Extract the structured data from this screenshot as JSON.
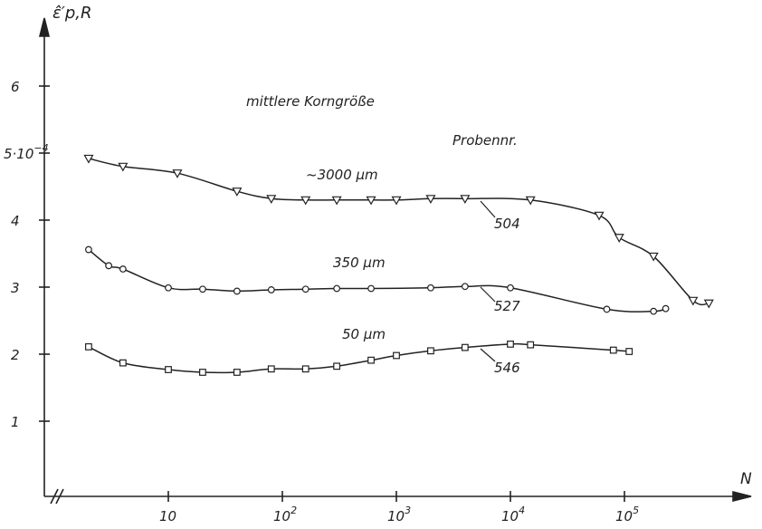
{
  "chart_data": {
    "type": "scatter",
    "x_scale": "log",
    "xlabel": "N",
    "ylabel": "ε̂′p,R",
    "xlim": [
      1,
      1000000
    ],
    "ylim": [
      0,
      7
    ],
    "grid": false,
    "x_ticks": [
      {
        "value": 10,
        "base": "10",
        "exp": ""
      },
      {
        "value": 100,
        "base": "10",
        "exp": "2"
      },
      {
        "value": 1000,
        "base": "10",
        "exp": "3"
      },
      {
        "value": 10000,
        "base": "10",
        "exp": "4"
      },
      {
        "value": 100000,
        "base": "10",
        "exp": "5"
      }
    ],
    "y_ticks": [
      {
        "value": 1,
        "label": "1",
        "sup": ""
      },
      {
        "value": 2,
        "label": "2",
        "sup": ""
      },
      {
        "value": 3,
        "label": "3",
        "sup": ""
      },
      {
        "value": 4,
        "label": "4",
        "sup": ""
      },
      {
        "value": 5,
        "label": "5·10",
        "sup": "−4"
      },
      {
        "value": 6,
        "label": "6",
        "sup": ""
      }
    ],
    "annotations": {
      "heading": "mittlere Korngröße",
      "sample_heading": "Probennr."
    },
    "series": [
      {
        "grain_size": "~3000 µm",
        "sample": "504",
        "marker": "triangle-down",
        "points": [
          {
            "x": 2,
            "y": 4.92
          },
          {
            "x": 4,
            "y": 4.8
          },
          {
            "x": 12,
            "y": 4.7
          },
          {
            "x": 40,
            "y": 4.43
          },
          {
            "x": 80,
            "y": 4.32
          },
          {
            "x": 160,
            "y": 4.3
          },
          {
            "x": 300,
            "y": 4.3
          },
          {
            "x": 600,
            "y": 4.3
          },
          {
            "x": 1000,
            "y": 4.3
          },
          {
            "x": 2000,
            "y": 4.32
          },
          {
            "x": 4000,
            "y": 4.32
          },
          {
            "x": 15000,
            "y": 4.3
          },
          {
            "x": 60000,
            "y": 4.07
          },
          {
            "x": 90000,
            "y": 3.74
          },
          {
            "x": 180000,
            "y": 3.46
          },
          {
            "x": 400000,
            "y": 2.8
          },
          {
            "x": 550000,
            "y": 2.76
          }
        ]
      },
      {
        "grain_size": "350 µm",
        "sample": "527",
        "marker": "circle",
        "points": [
          {
            "x": 2,
            "y": 3.56
          },
          {
            "x": 3,
            "y": 3.32
          },
          {
            "x": 4,
            "y": 3.27
          },
          {
            "x": 10,
            "y": 2.99
          },
          {
            "x": 20,
            "y": 2.97
          },
          {
            "x": 40,
            "y": 2.94
          },
          {
            "x": 80,
            "y": 2.96
          },
          {
            "x": 160,
            "y": 2.97
          },
          {
            "x": 300,
            "y": 2.98
          },
          {
            "x": 600,
            "y": 2.98
          },
          {
            "x": 2000,
            "y": 2.99
          },
          {
            "x": 4000,
            "y": 3.01
          },
          {
            "x": 10000,
            "y": 2.99
          },
          {
            "x": 70000,
            "y": 2.67
          },
          {
            "x": 180000,
            "y": 2.64
          },
          {
            "x": 230000,
            "y": 2.68
          }
        ]
      },
      {
        "grain_size": "50 µm",
        "sample": "546",
        "marker": "square",
        "points": [
          {
            "x": 2,
            "y": 2.11
          },
          {
            "x": 4,
            "y": 1.87
          },
          {
            "x": 10,
            "y": 1.77
          },
          {
            "x": 20,
            "y": 1.73
          },
          {
            "x": 40,
            "y": 1.73
          },
          {
            "x": 80,
            "y": 1.78
          },
          {
            "x": 160,
            "y": 1.78
          },
          {
            "x": 300,
            "y": 1.82
          },
          {
            "x": 600,
            "y": 1.91
          },
          {
            "x": 1000,
            "y": 1.98
          },
          {
            "x": 2000,
            "y": 2.05
          },
          {
            "x": 4000,
            "y": 2.1
          },
          {
            "x": 10000,
            "y": 2.15
          },
          {
            "x": 15000,
            "y": 2.14
          },
          {
            "x": 80000,
            "y": 2.06
          },
          {
            "x": 110000,
            "y": 2.04
          }
        ]
      }
    ]
  }
}
